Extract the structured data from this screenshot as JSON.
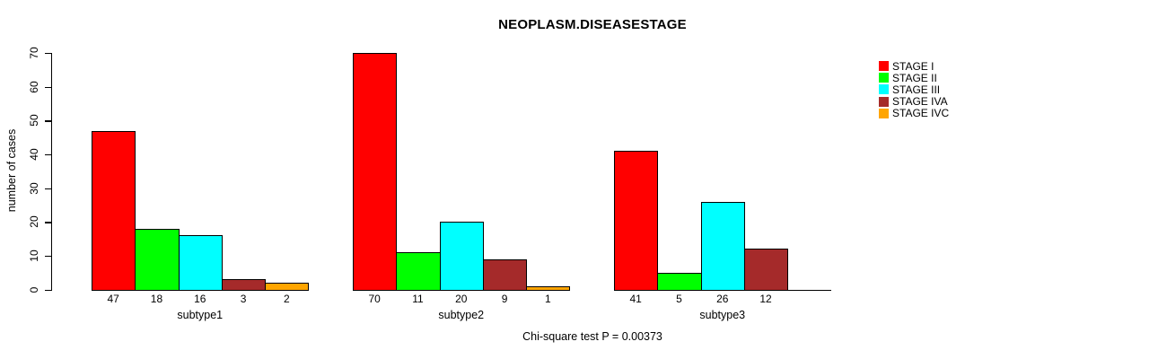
{
  "chart_data": {
    "type": "bar",
    "title": "NEOPLASM.DISEASESTAGE",
    "xlabel": "",
    "ylabel": "number of cases",
    "ylim": [
      0,
      70
    ],
    "yticks": [
      0,
      10,
      20,
      30,
      40,
      50,
      60,
      70
    ],
    "grid": false,
    "legend_position": "right",
    "bar_value_labels": true,
    "categories": [
      "subtype1",
      "subtype2",
      "subtype3"
    ],
    "series": [
      {
        "name": "STAGE I",
        "color": "#FF0000",
        "values": [
          47,
          70,
          41
        ]
      },
      {
        "name": "STAGE II",
        "color": "#00FF00",
        "values": [
          18,
          11,
          5
        ]
      },
      {
        "name": "STAGE III",
        "color": "#00FFFF",
        "values": [
          16,
          20,
          26
        ]
      },
      {
        "name": "STAGE IVA",
        "color": "#A52A2A",
        "values": [
          3,
          9,
          12
        ]
      },
      {
        "name": "STAGE IVC",
        "color": "#FFA500",
        "values": [
          2,
          1,
          0
        ]
      }
    ],
    "annotation": "Chi-square test P = 0.00373"
  }
}
